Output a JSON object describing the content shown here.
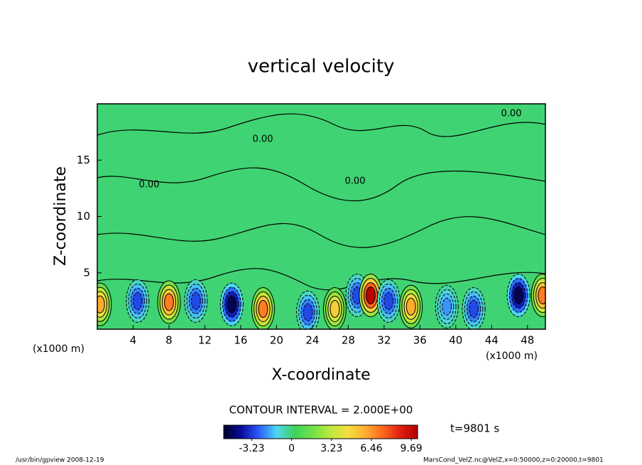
{
  "chart_data": {
    "type": "contour",
    "title": "vertical velocity",
    "x_label": "X-coordinate",
    "y_label": "Z-coordinate",
    "x_unit": "(x1000 m)",
    "xlim": [
      0,
      50
    ],
    "xticks": [
      4,
      8,
      12,
      16,
      20,
      24,
      28,
      32,
      36,
      40,
      44,
      48
    ],
    "ylim": [
      0,
      20
    ],
    "yticks": [
      5,
      10,
      15
    ],
    "contour_interval": "CONTOUR INTERVAL = 2.000E+00",
    "contour_labels": [
      "0.00",
      "0.00",
      "0.00",
      "0.00"
    ],
    "extrema": {
      "x": [
        0.3,
        4.5,
        8,
        11,
        15,
        18.5,
        23.5,
        26.5,
        29,
        30.5,
        32.5,
        35,
        39,
        42,
        47,
        49.7
      ],
      "z": [
        2.2,
        2.5,
        2.4,
        2.5,
        2.2,
        1.8,
        1.5,
        1.8,
        3,
        3,
        2.5,
        2,
        2,
        1.8,
        3,
        3
      ],
      "values": [
        6,
        -3,
        7,
        -3,
        -5,
        7,
        -3,
        5,
        -3,
        10,
        -3,
        6,
        -2,
        -3,
        -5,
        7
      ]
    },
    "colormap": [
      "#000028",
      "#0a0a9a",
      "#2a5cff",
      "#4fd8f0",
      "#3ed25e",
      "#6ee04a",
      "#b8e83c",
      "#f0e040",
      "#ffb030",
      "#ff6a20",
      "#e02010",
      "#b00000"
    ],
    "clim": [
      -5.5,
      10.2
    ],
    "cticks": [
      -3.23,
      0,
      3.23,
      6.46,
      9.69
    ],
    "time_label": "t=9801 s",
    "footer_left": "/usr/bin/gpview   2008-12-19",
    "footer_right": "MarsCond_VelZ.nc@VelZ,x=0:50000,z=0:20000,t=9801"
  }
}
